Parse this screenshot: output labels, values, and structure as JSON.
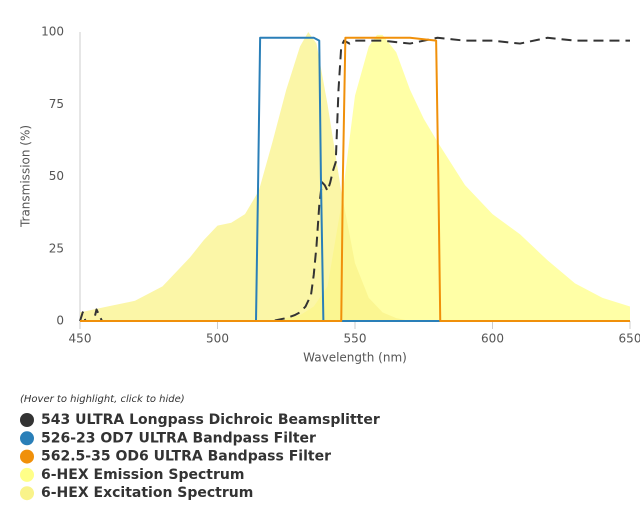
{
  "chart_data": {
    "type": "line",
    "x_label": "Wavelength (nm)",
    "y_label": "Transmission (%)",
    "legend_note": "(Hover to highlight, click to hide)",
    "xlim": [
      450,
      650
    ],
    "xticks": [
      450,
      500,
      550,
      600,
      650
    ],
    "ylim": [
      0,
      100
    ],
    "yticks": [
      0,
      25,
      50,
      75,
      100
    ],
    "grid": false,
    "legend": "bottom-left",
    "series": [
      {
        "name": "543 ULTRA Longpass Dichroic Beamsplitter",
        "color": "#333333",
        "line_style": "dashed",
        "fill": false,
        "x": [
          450,
          451,
          452,
          455,
          456,
          458,
          460,
          500,
          520,
          525,
          528,
          530,
          532,
          534,
          535,
          536,
          537,
          538,
          539,
          540,
          541,
          542,
          543,
          544,
          545,
          546,
          548,
          550,
          560,
          570,
          580,
          590,
          600,
          610,
          620,
          630,
          640,
          650
        ],
        "values": [
          0,
          3,
          0,
          0,
          4,
          0,
          0,
          0,
          0,
          1,
          2,
          3,
          5,
          9,
          16,
          26,
          40,
          48,
          47,
          45,
          48,
          52,
          55,
          80,
          95,
          97,
          96,
          97,
          97,
          96,
          98,
          97,
          97,
          96,
          98,
          97,
          97,
          97
        ]
      },
      {
        "name": "526-23 OD7 ULTRA Bandpass Filter",
        "color": "#2a7fb8",
        "line_style": "solid",
        "fill": false,
        "x": [
          450,
          514,
          514.8,
          515.5,
          520,
          525,
          530,
          535,
          537,
          537.6,
          538.5,
          650
        ],
        "values": [
          0,
          0,
          50,
          98,
          98,
          98,
          98,
          98,
          97,
          50,
          0,
          0
        ]
      },
      {
        "name": "562.5-35 OD6 ULTRA Bandpass Filter",
        "color": "#f0900a",
        "line_style": "solid",
        "fill": false,
        "x": [
          450,
          545,
          545.6,
          546.5,
          550,
          560,
          570,
          579.5,
          580.3,
          581,
          650
        ],
        "values": [
          0,
          0,
          50,
          98,
          98,
          98,
          98,
          97,
          50,
          0,
          0
        ]
      },
      {
        "name": "6-HEX Emission Spectrum",
        "color": "#ffff88",
        "line_style": "solid",
        "fill": true,
        "x": [
          450,
          520,
          530,
          535,
          540,
          545,
          550,
          555,
          558,
          560,
          565,
          570,
          575,
          580,
          590,
          600,
          610,
          620,
          630,
          640,
          650
        ],
        "values": [
          0,
          0,
          2,
          5,
          12,
          40,
          78,
          95,
          99,
          99,
          93,
          80,
          70,
          62,
          47,
          37,
          30,
          21,
          13,
          8,
          5
        ]
      },
      {
        "name": "6-HEX Excitation Spectrum",
        "color": "#f9f38a",
        "line_style": "solid",
        "fill": true,
        "x": [
          450,
          460,
          470,
          480,
          490,
          495,
          500,
          505,
          510,
          515,
          520,
          525,
          530,
          533,
          536,
          540,
          545,
          550,
          555,
          560,
          565,
          570,
          650
        ],
        "values": [
          3,
          5,
          7,
          12,
          22,
          28,
          33,
          34,
          37,
          45,
          62,
          80,
          95,
          100,
          96,
          75,
          45,
          20,
          8,
          3,
          1,
          0,
          0
        ]
      }
    ]
  }
}
